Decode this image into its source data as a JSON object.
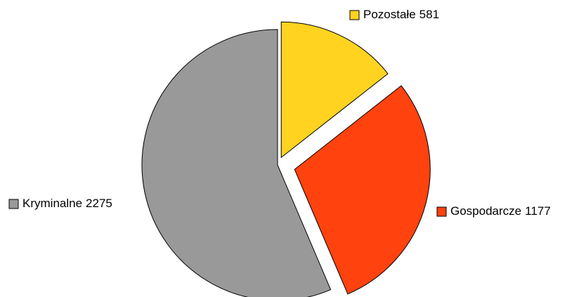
{
  "chart_data": {
    "type": "pie",
    "categories": [
      "Pozostałe",
      "Gospodarcze",
      "Kryminalne"
    ],
    "values": [
      581,
      1177,
      2275
    ],
    "colors": [
      "#ffd320",
      "#ff420e",
      "#999999"
    ]
  }
}
